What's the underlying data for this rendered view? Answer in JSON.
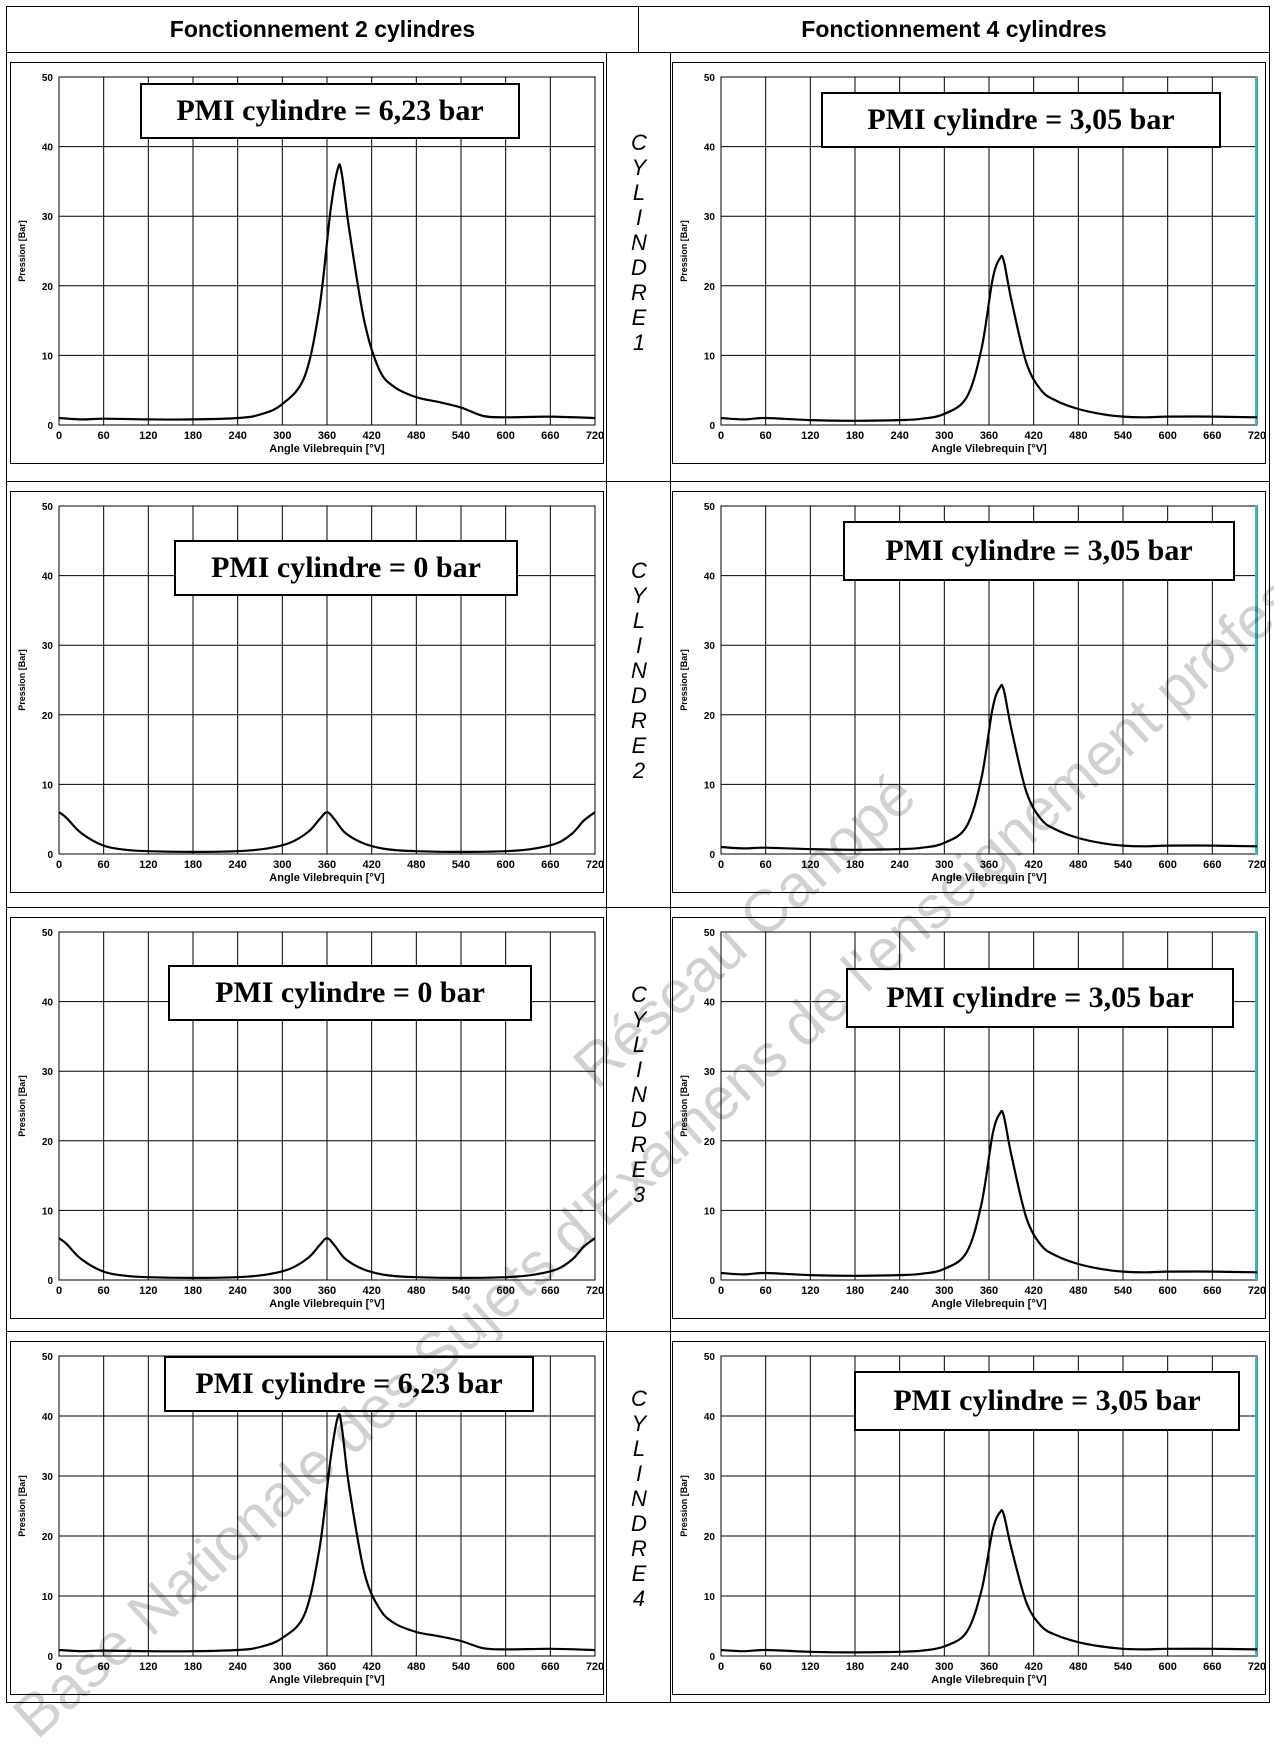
{
  "headers": {
    "left": "Fonctionnement 2 cylindres",
    "right": "Fonctionnement 4 cylindres"
  },
  "colors": {
    "curve": "#000000",
    "grid": "#000000",
    "frame": "#000000",
    "cyan_marker": "#19c6d6",
    "yellow_marker": "#c8d43a"
  },
  "axis": {
    "xlabel": "Angle Vilebrequin [°V]",
    "ylabel": "Pression [Bar]",
    "xticks": [
      "0",
      "60",
      "120",
      "180",
      "240",
      "300",
      "360",
      "420",
      "480",
      "540",
      "600",
      "660",
      "720"
    ],
    "yticks": [
      "0",
      "10",
      "20",
      "30",
      "40",
      "50"
    ]
  },
  "rows": [
    {
      "cyl_letters": [
        "C",
        "Y",
        "L",
        "I",
        "N",
        "D",
        "R",
        "E",
        "1"
      ]
    },
    {
      "cyl_letters": [
        "C",
        "Y",
        "L",
        "I",
        "N",
        "D",
        "R",
        "E",
        "2"
      ]
    },
    {
      "cyl_letters": [
        "C",
        "Y",
        "L",
        "I",
        "N",
        "D",
        "R",
        "E",
        "3"
      ]
    },
    {
      "cyl_letters": [
        "C",
        "Y",
        "L",
        "I",
        "N",
        "D",
        "R",
        "E",
        "4"
      ]
    }
  ],
  "chart_data": [
    {
      "type": "line",
      "mode": "2 cylindres",
      "cylinder": 1,
      "annotation": "PMI cylindre = 6,23 bar",
      "xlim": [
        0,
        720
      ],
      "ylim": [
        0,
        50
      ],
      "xlabel": "Angle Vilebrequin [°V]",
      "ylabel": "Pression [Bar]",
      "x": [
        0,
        30,
        60,
        120,
        180,
        240,
        270,
        300,
        330,
        350,
        365,
        375,
        380,
        390,
        410,
        430,
        450,
        480,
        510,
        540,
        570,
        600,
        660,
        720
      ],
      "y": [
        1,
        0.8,
        0.9,
        0.8,
        0.8,
        1,
        1.5,
        3,
        7,
        17,
        31,
        37,
        36,
        28,
        15,
        8,
        5.5,
        4,
        3.3,
        2.5,
        1.3,
        1.1,
        1.2,
        1
      ]
    },
    {
      "type": "line",
      "mode": "4 cylindres",
      "cylinder": 1,
      "annotation": "PMI cylindre = 3,05 bar",
      "xlim": [
        0,
        720
      ],
      "ylim": [
        0,
        50
      ],
      "xlabel": "Angle Vilebrequin [°V]",
      "ylabel": "Pression [Bar]",
      "x": [
        0,
        30,
        60,
        120,
        180,
        240,
        270,
        300,
        330,
        350,
        365,
        375,
        380,
        390,
        410,
        430,
        450,
        480,
        510,
        540,
        570,
        600,
        660,
        720
      ],
      "y": [
        1,
        0.8,
        1,
        0.7,
        0.6,
        0.7,
        0.9,
        1.6,
        4,
        11,
        21,
        24,
        23.5,
        18,
        9,
        5,
        3.5,
        2.3,
        1.6,
        1.2,
        1.1,
        1.2,
        1.2,
        1.1
      ]
    },
    {
      "type": "line",
      "mode": "2 cylindres",
      "cylinder": 2,
      "annotation": "PMI cylindre = 0 bar",
      "xlim": [
        0,
        720
      ],
      "ylim": [
        0,
        50
      ],
      "xlabel": "Angle Vilebrequin [°V]",
      "ylabel": "Pression [Bar]",
      "x": [
        0,
        10,
        30,
        60,
        90,
        120,
        180,
        240,
        280,
        310,
        335,
        350,
        360,
        370,
        385,
        410,
        440,
        480,
        540,
        600,
        640,
        670,
        690,
        705,
        720
      ],
      "y": [
        6,
        5.2,
        3,
        1.2,
        0.6,
        0.4,
        0.3,
        0.4,
        0.8,
        1.6,
        3.2,
        5,
        6,
        5,
        3,
        1.5,
        0.7,
        0.4,
        0.3,
        0.4,
        0.8,
        1.6,
        3,
        4.8,
        6
      ]
    },
    {
      "type": "line",
      "mode": "4 cylindres",
      "cylinder": 2,
      "annotation": "PMI cylindre = 3,05 bar",
      "xlim": [
        0,
        720
      ],
      "ylim": [
        0,
        50
      ],
      "xlabel": "Angle Vilebrequin [°V]",
      "ylabel": "Pression [Bar]",
      "x": [
        0,
        30,
        60,
        120,
        180,
        240,
        270,
        300,
        330,
        350,
        365,
        375,
        380,
        390,
        410,
        430,
        450,
        480,
        510,
        540,
        570,
        600,
        660,
        720
      ],
      "y": [
        1,
        0.8,
        0.9,
        0.7,
        0.6,
        0.7,
        0.9,
        1.6,
        4,
        11,
        21,
        24,
        23.5,
        18,
        9,
        5,
        3.5,
        2.3,
        1.6,
        1.2,
        1.1,
        1.2,
        1.2,
        1.1
      ]
    },
    {
      "type": "line",
      "mode": "2 cylindres",
      "cylinder": 3,
      "annotation": "PMI cylindre = 0 bar",
      "xlim": [
        0,
        720
      ],
      "ylim": [
        0,
        50
      ],
      "xlabel": "Angle Vilebrequin [°V]",
      "ylabel": "Pression [Bar]",
      "x": [
        0,
        10,
        30,
        60,
        90,
        120,
        180,
        240,
        280,
        310,
        335,
        350,
        360,
        370,
        385,
        410,
        440,
        480,
        540,
        600,
        640,
        670,
        690,
        705,
        720
      ],
      "y": [
        6,
        5.2,
        3,
        1.2,
        0.6,
        0.4,
        0.3,
        0.4,
        0.8,
        1.6,
        3.2,
        5,
        6,
        5,
        3,
        1.5,
        0.7,
        0.4,
        0.3,
        0.4,
        0.8,
        1.6,
        3,
        4.8,
        6
      ]
    },
    {
      "type": "line",
      "mode": "4 cylindres",
      "cylinder": 3,
      "annotation": "PMI cylindre = 3,05 bar",
      "xlim": [
        0,
        720
      ],
      "ylim": [
        0,
        50
      ],
      "xlabel": "Angle Vilebrequin [°V]",
      "ylabel": "Pression [Bar]",
      "x": [
        0,
        30,
        60,
        120,
        180,
        240,
        270,
        300,
        330,
        350,
        365,
        375,
        380,
        390,
        410,
        430,
        450,
        480,
        510,
        540,
        570,
        600,
        660,
        720
      ],
      "y": [
        1,
        0.8,
        1,
        0.7,
        0.6,
        0.7,
        0.9,
        1.6,
        4,
        11,
        21,
        24,
        23.5,
        18,
        9,
        5,
        3.5,
        2.3,
        1.6,
        1.2,
        1.1,
        1.2,
        1.2,
        1.1
      ]
    },
    {
      "type": "line",
      "mode": "2 cylindres",
      "cylinder": 4,
      "annotation": "PMI cylindre = 6,23 bar",
      "xlim": [
        0,
        720
      ],
      "ylim": [
        0,
        50
      ],
      "xlabel": "Angle Vilebrequin [°V]",
      "ylabel": "Pression [Bar]",
      "x": [
        0,
        30,
        60,
        120,
        180,
        240,
        270,
        300,
        330,
        350,
        365,
        375,
        380,
        390,
        410,
        430,
        450,
        480,
        510,
        540,
        570,
        600,
        660,
        720
      ],
      "y": [
        1,
        0.8,
        0.9,
        0.8,
        0.8,
        1,
        1.5,
        3,
        7,
        18,
        33,
        40,
        38,
        28,
        14,
        8,
        5.5,
        4,
        3.3,
        2.5,
        1.3,
        1.1,
        1.2,
        1
      ]
    },
    {
      "type": "line",
      "mode": "4 cylindres",
      "cylinder": 4,
      "annotation": "PMI cylindre = 3,05 bar",
      "xlim": [
        0,
        720
      ],
      "ylim": [
        0,
        50
      ],
      "xlabel": "Angle Vilebrequin [°V]",
      "ylabel": "Pression [Bar]",
      "x": [
        0,
        30,
        60,
        120,
        180,
        240,
        270,
        300,
        330,
        350,
        365,
        375,
        380,
        390,
        410,
        430,
        450,
        480,
        510,
        540,
        570,
        600,
        660,
        720
      ],
      "y": [
        1,
        0.8,
        1,
        0.7,
        0.6,
        0.7,
        0.9,
        1.6,
        4,
        11,
        21,
        24,
        23.5,
        18,
        9,
        5,
        3.5,
        2.3,
        1.6,
        1.2,
        1.1,
        1.2,
        1.2,
        1.1
      ]
    }
  ],
  "watermarks": [
    "Base Nationale des Sujets d'Examens de l'enseignement professionnel",
    "Réseau Canopé"
  ]
}
